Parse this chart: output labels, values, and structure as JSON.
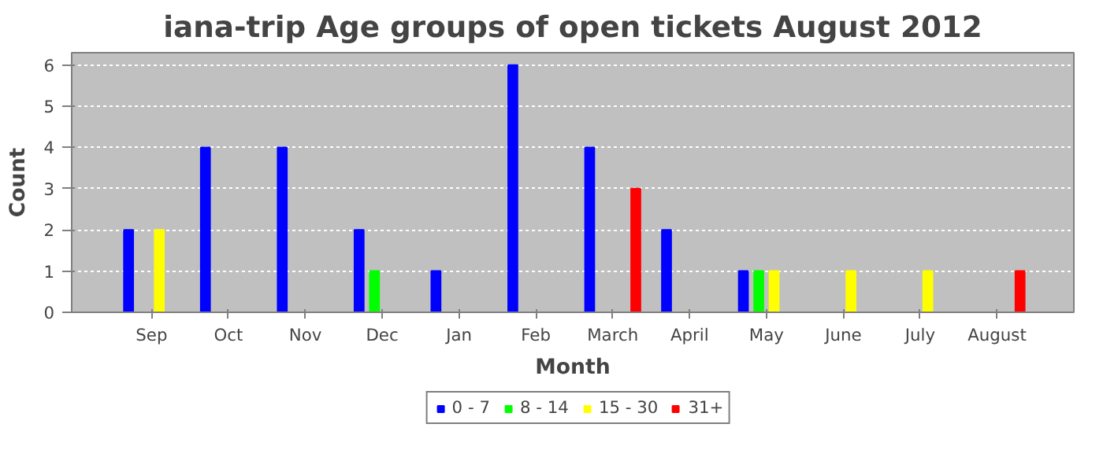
{
  "chart_data": {
    "type": "bar",
    "title": "iana-trip Age groups of open tickets August 2012",
    "xlabel": "Month",
    "ylabel": "Count",
    "categories": [
      "Sep",
      "Oct",
      "Nov",
      "Dec",
      "Jan",
      "Feb",
      "March",
      "April",
      "May",
      "June",
      "July",
      "August"
    ],
    "series": [
      {
        "name": "0 - 7",
        "color": "#0000ff",
        "values": [
          2,
          4,
          4,
          2,
          1,
          6,
          4,
          2,
          1,
          0,
          0,
          0
        ]
      },
      {
        "name": "8 - 14",
        "color": "#00ff00",
        "values": [
          0,
          0,
          0,
          1,
          0,
          0,
          0,
          0,
          1,
          0,
          0,
          0
        ]
      },
      {
        "name": "15 - 30",
        "color": "#ffff00",
        "values": [
          2,
          0,
          0,
          0,
          0,
          0,
          0,
          0,
          1,
          1,
          1,
          0
        ]
      },
      {
        "name": "31+",
        "color": "#ff0000",
        "values": [
          0,
          0,
          0,
          0,
          0,
          0,
          3,
          0,
          0,
          0,
          0,
          1
        ]
      }
    ],
    "ylim": [
      0,
      6.3
    ],
    "yticks": [
      0,
      1,
      2,
      3,
      4,
      5,
      6
    ],
    "grid": "y",
    "legend": "bottom"
  }
}
